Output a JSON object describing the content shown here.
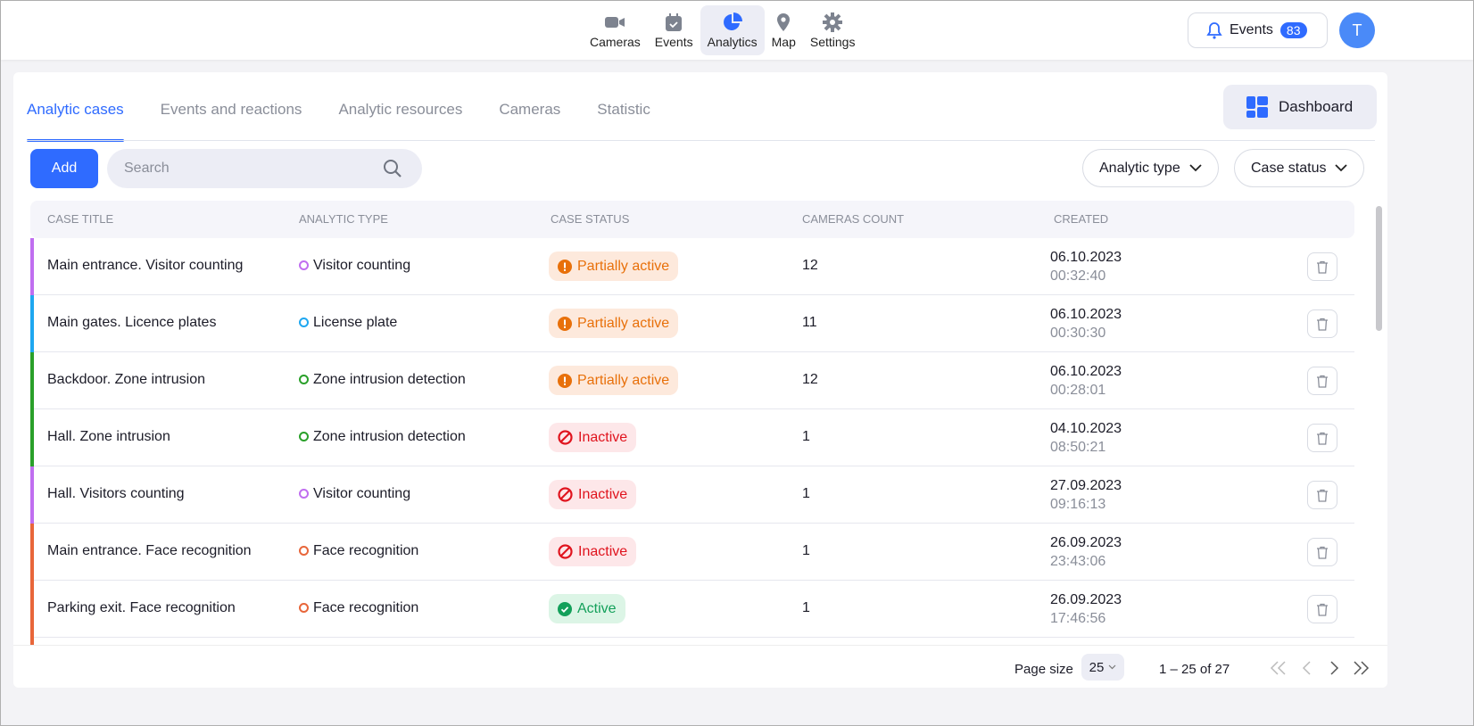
{
  "colors": {
    "accent": "#2f6bff",
    "partial_bg": "#fde9dc",
    "partial_fg": "#e8700a",
    "inactive_bg": "#fde7e9",
    "inactive_fg": "#e0141e",
    "active_bg": "#dcf5e6",
    "active_fg": "#13a05a"
  },
  "nav": [
    {
      "label": "Cameras",
      "icon": "video-camera-icon"
    },
    {
      "label": "Events",
      "icon": "calendar-check-icon"
    },
    {
      "label": "Analytics",
      "icon": "pie-chart-icon",
      "active": true
    },
    {
      "label": "Map",
      "icon": "map-pin-icon"
    },
    {
      "label": "Settings",
      "icon": "gear-icon"
    }
  ],
  "header": {
    "events_label": "Events",
    "events_count": "83",
    "avatar": "T"
  },
  "tabs": [
    {
      "label": "Analytic cases",
      "active": true
    },
    {
      "label": "Events and reactions"
    },
    {
      "label": "Analytic resources"
    },
    {
      "label": "Cameras"
    },
    {
      "label": "Statistic"
    }
  ],
  "dashboard_label": "Dashboard",
  "toolbar": {
    "add_label": "Add",
    "search_placeholder": "Search",
    "filter_type": "Analytic type",
    "filter_status": "Case status"
  },
  "columns": [
    "Case title",
    "Analytic type",
    "Case status",
    "Cameras count",
    "Created"
  ],
  "rows": [
    {
      "title": "Main entrance. Visitor counting",
      "type": "Visitor counting",
      "color": "#c06ef0",
      "status": "Partially active",
      "kind": "partial",
      "count": "12",
      "date": "06.10.2023",
      "time": "00:32:40"
    },
    {
      "title": "Main gates. Licence plates",
      "type": "License plate",
      "color": "#1ea7f0",
      "status": "Partially active",
      "kind": "partial",
      "count": "11",
      "date": "06.10.2023",
      "time": "00:30:30"
    },
    {
      "title": "Backdoor. Zone intrusion",
      "type": "Zone intrusion detection",
      "color": "#2aa02a",
      "status": "Partially active",
      "kind": "partial",
      "count": "12",
      "date": "06.10.2023",
      "time": "00:28:01"
    },
    {
      "title": "Hall. Zone intrusion",
      "type": "Zone intrusion detection",
      "color": "#2aa02a",
      "status": "Inactive",
      "kind": "inactive",
      "count": "1",
      "date": "04.10.2023",
      "time": "08:50:21"
    },
    {
      "title": "Hall. Visitors counting",
      "type": "Visitor counting",
      "color": "#c06ef0",
      "status": "Inactive",
      "kind": "inactive",
      "count": "1",
      "date": "27.09.2023",
      "time": "09:16:13"
    },
    {
      "title": "Main entrance. Face recognition",
      "type": "Face recognition",
      "color": "#e8663a",
      "status": "Inactive",
      "kind": "inactive",
      "count": "1",
      "date": "26.09.2023",
      "time": "23:43:06"
    },
    {
      "title": "Parking exit. Face recognition",
      "type": "Face recognition",
      "color": "#e8663a",
      "status": "Active",
      "kind": "active",
      "count": "1",
      "date": "26.09.2023",
      "time": "17:46:56"
    }
  ],
  "footer": {
    "page_size_label": "Page size",
    "page_size": "25",
    "range": "1 – 25 of 27"
  }
}
